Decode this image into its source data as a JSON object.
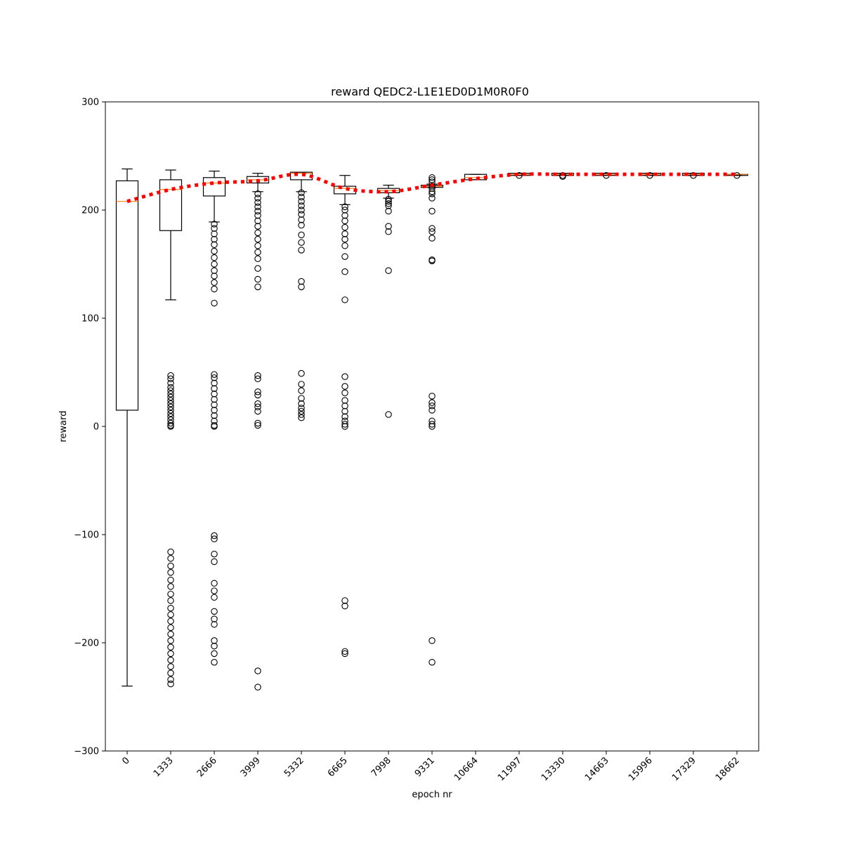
{
  "chart_data": {
    "type": "box",
    "title": "reward QEDC2-L1E1ED0D1M0R0F0",
    "xlabel": "epoch nr",
    "ylabel": "reward",
    "ylim": [
      -300,
      300
    ],
    "yticks": [
      -300,
      -200,
      -100,
      0,
      100,
      200,
      300
    ],
    "ytick_labels": [
      "−300",
      "−200",
      "−100",
      "0",
      "100",
      "200",
      "300"
    ],
    "grid": false,
    "categories": [
      "0",
      "1333",
      "2666",
      "3999",
      "5332",
      "6665",
      "7998",
      "9331",
      "10664",
      "11997",
      "13330",
      "14663",
      "15996",
      "17329",
      "18662"
    ],
    "boxes": [
      {
        "q1": 15,
        "median": 208,
        "q3": 227,
        "whisker_low": -240,
        "whisker_high": 238,
        "mean": 208,
        "outliers": []
      },
      {
        "q1": 181,
        "median": 219,
        "q3": 228,
        "whisker_low": 117,
        "whisker_high": 237,
        "mean": 219,
        "outliers": [
          47,
          44,
          40,
          36,
          33,
          30,
          27,
          24,
          21,
          18,
          15,
          12,
          9,
          6,
          3,
          1,
          0,
          -116,
          -122,
          -129,
          -135,
          -142,
          -148,
          -155,
          -161,
          -168,
          -174,
          -180,
          -186,
          -192,
          -198,
          -204,
          -210,
          -216,
          -222,
          -228,
          -234,
          -238
        ]
      },
      {
        "q1": 213,
        "median": 225,
        "q3": 230,
        "whisker_low": 189,
        "whisker_high": 236,
        "mean": 225,
        "outliers": [
          187,
          183,
          178,
          173,
          168,
          162,
          156,
          150,
          144,
          139,
          133,
          127,
          114,
          48,
          45,
          40,
          35,
          30,
          25,
          20,
          15,
          10,
          5,
          1,
          0,
          -101,
          -104,
          -118,
          -125,
          -145,
          -152,
          -158,
          -171,
          -178,
          -183,
          -198,
          -203,
          -210,
          -218
        ]
      },
      {
        "q1": 225,
        "median": 228,
        "q3": 231,
        "whisker_low": 217,
        "whisker_high": 234,
        "mean": 227,
        "outliers": [
          215,
          211,
          207,
          203,
          199,
          195,
          190,
          185,
          179,
          173,
          167,
          161,
          155,
          146,
          136,
          129,
          47,
          44,
          32,
          29,
          21,
          18,
          14,
          3,
          1,
          -226,
          -241
        ]
      },
      {
        "q1": 228,
        "median": 234,
        "q3": 235,
        "whisker_low": 217,
        "whisker_high": 235,
        "mean": 233,
        "outliers": [
          216,
          212,
          208,
          204,
          200,
          196,
          191,
          186,
          177,
          170,
          163,
          134,
          129,
          49,
          39,
          33,
          26,
          21,
          17,
          14,
          11,
          8
        ]
      },
      {
        "q1": 215,
        "median": 220,
        "q3": 222,
        "whisker_low": 205,
        "whisker_high": 232,
        "mean": 220,
        "outliers": [
          203,
          200,
          195,
          190,
          184,
          178,
          173,
          167,
          157,
          143,
          117,
          46,
          37,
          31,
          24,
          19,
          14,
          9,
          5,
          2,
          0,
          -161,
          -166,
          -208,
          -210
        ]
      },
      {
        "q1": 216,
        "median": 218,
        "q3": 220,
        "whisker_low": 211,
        "whisker_high": 223,
        "mean": 217,
        "outliers": [
          210,
          208,
          206,
          204,
          199,
          185,
          180,
          144,
          11
        ]
      },
      {
        "q1": 221,
        "median": 222,
        "q3": 223,
        "whisker_low": 221,
        "whisker_high": 224,
        "mean": 223,
        "outliers": [
          230,
          228,
          226,
          222,
          220,
          217,
          215,
          211,
          199,
          183,
          180,
          174,
          154,
          153,
          28,
          22,
          19,
          15,
          5,
          2,
          0,
          -198,
          -218
        ]
      },
      {
        "q1": 228,
        "median": 230,
        "q3": 233,
        "whisker_low": 228,
        "whisker_high": 233,
        "mean": 229,
        "outliers": []
      },
      {
        "q1": 232,
        "median": 233,
        "q3": 234,
        "whisker_low": 232,
        "whisker_high": 234,
        "mean": 233,
        "outliers": [
          232
        ]
      },
      {
        "q1": 232,
        "median": 233,
        "q3": 234,
        "whisker_low": 232,
        "whisker_high": 234,
        "mean": 233,
        "outliers": [
          231,
          232
        ]
      },
      {
        "q1": 232,
        "median": 233,
        "q3": 234,
        "whisker_low": 232,
        "whisker_high": 234,
        "mean": 233,
        "outliers": [
          232
        ]
      },
      {
        "q1": 232,
        "median": 233,
        "q3": 234,
        "whisker_low": 232,
        "whisker_high": 234,
        "mean": 233,
        "outliers": [
          232
        ]
      },
      {
        "q1": 232,
        "median": 233,
        "q3": 234,
        "whisker_low": 232,
        "whisker_high": 234,
        "mean": 233,
        "outliers": [
          232
        ]
      },
      {
        "q1": 232,
        "median": 233,
        "q3": 233,
        "whisker_low": 232,
        "whisker_high": 233,
        "mean": 233,
        "outliers": [
          232
        ]
      }
    ],
    "mean_line": {
      "style": "dotted",
      "color": "#ff0000"
    },
    "colors": {
      "box": "#000000",
      "median": "#ff7f0e",
      "mean_line": "#ff0000",
      "outlier": "#000000"
    }
  }
}
